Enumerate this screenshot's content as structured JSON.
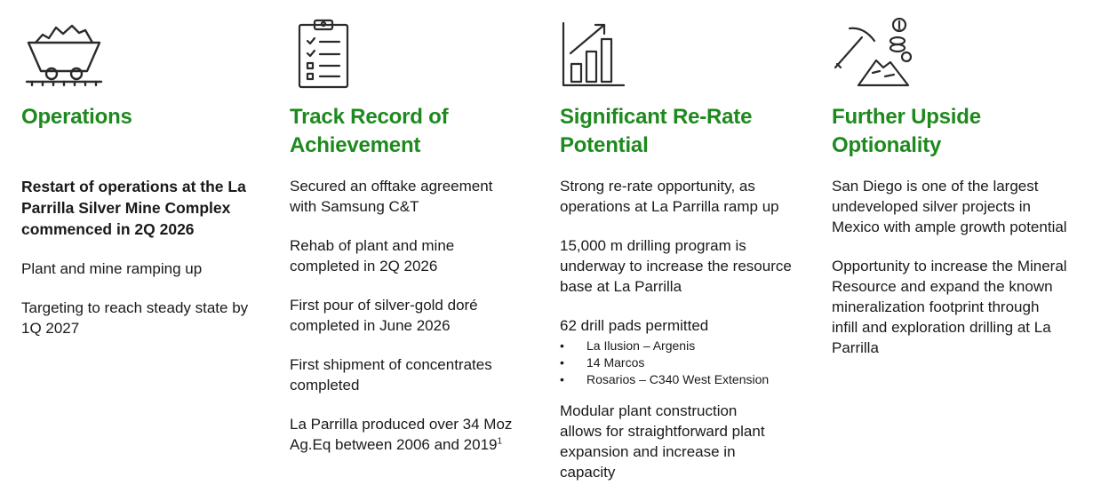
{
  "colors": {
    "accent": "#1e8a1e",
    "text": "#1a1a1a",
    "icon": "#2b2b2b"
  },
  "columns": [
    {
      "icon": "mine-cart-icon",
      "title": "Operations",
      "p1": "Restart of operations at the La Parrilla Silver Mine Complex commenced in 2Q 2026",
      "p2": "Plant and mine ramping up",
      "p3": "Targeting to reach steady state by 1Q 2027"
    },
    {
      "icon": "clipboard-checklist-icon",
      "title": "Track Record of Achievement",
      "p1": "Secured an offtake agreement with Samsung C&T",
      "p2": "Rehab of plant and mine completed in 2Q 2026",
      "p3": "First pour of silver-gold doré completed in June 2026",
      "p4": "First shipment of concentrates completed",
      "p5": "La Parrilla produced over 34 Moz Ag.Eq between 2006 and 2019",
      "p5_footnote": "1"
    },
    {
      "icon": "growth-chart-icon",
      "title": "Significant Re-Rate Potential",
      "p1": "Strong re-rate opportunity, as operations at La Parrilla ramp up",
      "p2": "15,000 m drilling program is underway to increase the resource base at La Parrilla",
      "p3": "62 drill pads permitted",
      "bullets": [
        "La Ilusion – Argenis",
        "14 Marcos",
        "Rosarios – C340 West Extension"
      ],
      "p4": "Modular plant construction allows for straightforward plant expansion and increase in capacity"
    },
    {
      "icon": "pickaxe-coins-icon",
      "title": "Further Upside Optionality",
      "p1": "San Diego is one of the largest undeveloped silver projects in Mexico with ample growth potential",
      "p2": "Opportunity to increase the Mineral Resource and expand the known mineralization footprint through infill and exploration drilling at La Parrilla"
    }
  ]
}
